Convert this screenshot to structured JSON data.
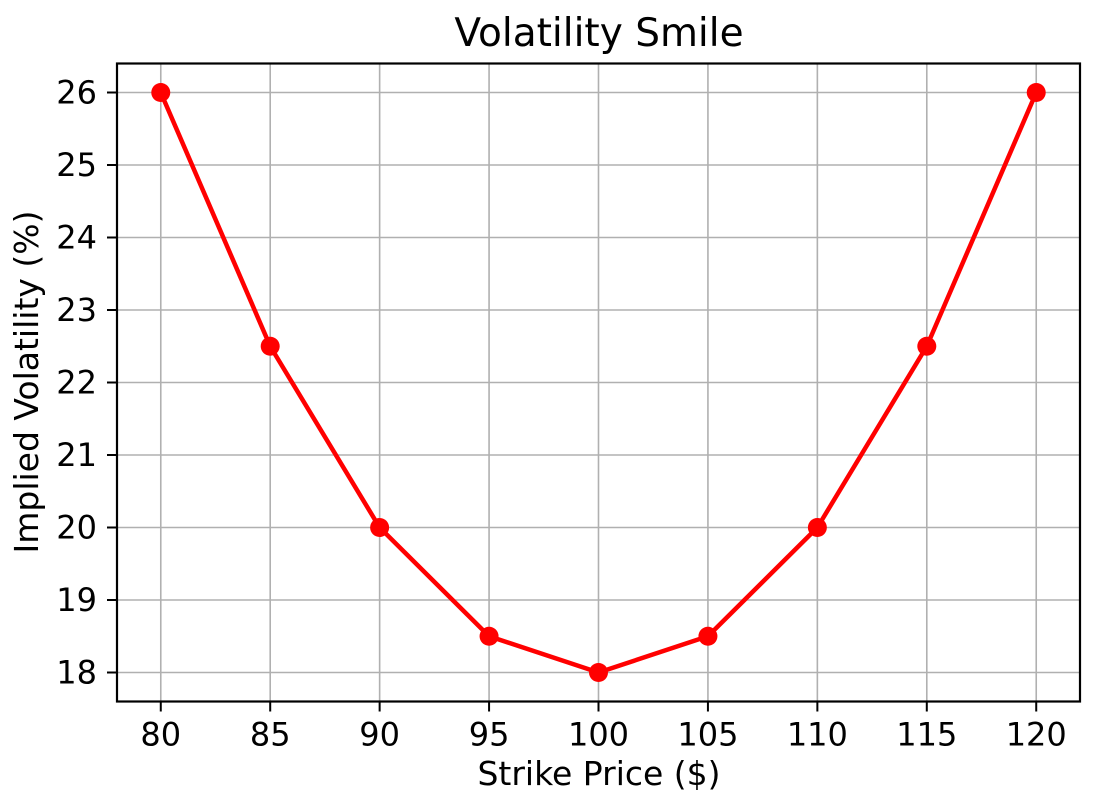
{
  "figure": {
    "background": "#ffffff"
  },
  "chart_data": {
    "type": "line",
    "title": "Volatility Smile",
    "xlabel": "Strike Price ($)",
    "ylabel": "Implied Volatility (%)",
    "x": [
      80,
      85,
      90,
      95,
      100,
      105,
      110,
      115,
      120
    ],
    "y": [
      26.0,
      22.5,
      20.0,
      18.5,
      18.0,
      18.5,
      20.0,
      22.5,
      26.0
    ],
    "xlim": [
      78,
      122
    ],
    "ylim": [
      17.6,
      26.4
    ],
    "xticks": [
      80,
      85,
      90,
      95,
      100,
      105,
      110,
      115,
      120
    ],
    "yticks": [
      18,
      19,
      20,
      21,
      22,
      23,
      24,
      25,
      26
    ],
    "grid": true,
    "legend": "none",
    "line_color": "#ff0000",
    "marker_color": "#ff0000",
    "marker_style": "circle",
    "grid_color": "#b0b0b0",
    "axis_color": "#000000",
    "tick_label_color": "#000000",
    "background": "#ffffff"
  }
}
